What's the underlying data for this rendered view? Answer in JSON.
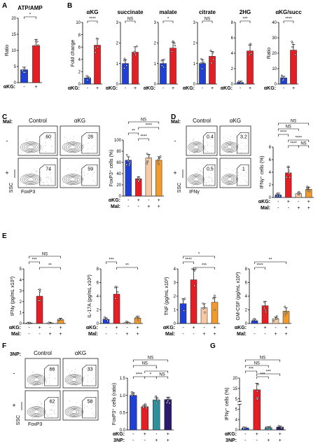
{
  "colors": {
    "blue": "#1f3fd6",
    "red": "#e31e24",
    "peach": "#f7c9a3",
    "orange": "#f39a2c",
    "teal": "#2f8f9a",
    "purple": "#2a1b6b",
    "dark": "#333333"
  },
  "panels": {
    "A": {
      "letter": "A",
      "title": "ATP/AMP",
      "ylabel": "Ratio",
      "ticks": [
        "0",
        "5",
        "10",
        "15",
        "20"
      ],
      "sig": "*",
      "akg_label": "αKG:",
      "signs": [
        "-",
        "+"
      ]
    },
    "B": {
      "letter": "B",
      "ylabel_left": "Fold change",
      "ylabel_right": "Ratio",
      "akg_label": "αKG:",
      "signs": [
        "-",
        "+"
      ],
      "subplots": [
        {
          "title": "αKG",
          "sig": "****",
          "ticks": [
            "0",
            "2",
            "4",
            "6",
            "8",
            "10"
          ]
        },
        {
          "title": "succinate",
          "sig": "NS",
          "ticks": [
            "0",
            "1",
            "2",
            "3"
          ]
        },
        {
          "title": "malate",
          "sig": "*",
          "ticks": [
            "0",
            "1",
            "2",
            "3"
          ]
        },
        {
          "title": "citrate",
          "sig": "NS",
          "ticks": [
            "0",
            "1",
            "2",
            "3"
          ]
        },
        {
          "title": "2HG",
          "sig": "***",
          "ticks": [
            "0",
            "2",
            "4",
            "6",
            "8"
          ]
        },
        {
          "title": "αKG/succ",
          "sig": "****",
          "ticks": [
            "0",
            "10",
            "20",
            "30",
            "40"
          ]
        }
      ]
    },
    "C": {
      "letter": "C",
      "mal_label": "Mal:",
      "col_labels": [
        "Control",
        "αKG"
      ],
      "row_labels": [
        "-",
        "+"
      ],
      "gate_values": [
        "60",
        "28",
        "74",
        "59"
      ],
      "ssc": "SSC",
      "marker": "FoxP3",
      "bar": {
        "ylabel": "FoxP3⁺ cells (%)",
        "ticks": [
          "0",
          "20",
          "40",
          "60",
          "80",
          "100"
        ],
        "sigs": [
          "NS",
          "****",
          "**",
          "****"
        ],
        "akg_label": "αKG:",
        "mal_label": "Mal:",
        "akg_signs": [
          "-",
          "+",
          "-",
          "+"
        ],
        "mal_signs": [
          "-",
          "-",
          "+",
          "+"
        ]
      }
    },
    "D": {
      "letter": "D",
      "mal_label": "Mal:",
      "col_labels": [
        "Control",
        "αKG"
      ],
      "row_labels": [
        "-",
        "+"
      ],
      "gate_values": [
        "0.4",
        "3.2",
        "0.5",
        "1"
      ],
      "ssc": "SSC",
      "marker": "IFNγ",
      "bar": {
        "ylabel": "IFNγ⁺ cells (%)",
        "ticks": [
          "0",
          "2",
          "4",
          "6",
          "8"
        ],
        "sigs": [
          "NS",
          "NS",
          "****",
          "****",
          "NS",
          "****"
        ],
        "akg_label": "αKG:",
        "mal_label": "Mal:",
        "akg_signs": [
          "-",
          "+",
          "-",
          "+"
        ],
        "mal_signs": [
          "-",
          "-",
          "+",
          "+"
        ]
      }
    },
    "E": {
      "letter": "E",
      "akg_label": "αKG:",
      "mal_label": "Mal:",
      "akg_signs": [
        "-",
        "+",
        "-",
        "+"
      ],
      "mal_signs": [
        "-",
        "-",
        "+",
        "+"
      ],
      "subplots": [
        {
          "ylabel": "IFNγ (pg/mL x10³)",
          "ticks": [
            "0",
            "1",
            "2",
            "3",
            "4",
            "5"
          ],
          "sigs": [
            "NS",
            "***",
            "**"
          ]
        },
        {
          "ylabel": "IL-17A (pg/mL x10³)",
          "ticks": [
            "0",
            "2",
            "4",
            "6",
            "8"
          ],
          "sigs": [
            "***",
            "**"
          ]
        },
        {
          "ylabel": "TNF (pg/mL x10³)",
          "ticks": [
            "0",
            "1",
            "2",
            "3",
            "4"
          ],
          "sigs": [
            "*",
            "****",
            "***"
          ]
        },
        {
          "ylabel": "GM-CSF (pg/mL x10³)",
          "ticks": [
            "0",
            "2",
            "4",
            "6",
            "8"
          ],
          "sigs": [
            "**",
            "****"
          ]
        }
      ]
    },
    "F": {
      "letter": "F",
      "np_label": "3NP:",
      "col_labels": [
        "Control",
        "αKG"
      ],
      "row_labels": [
        "-",
        "+"
      ],
      "gate_values": [
        "66",
        "33",
        "62",
        "58"
      ],
      "ssc": "SSC",
      "marker": "FoxP3",
      "bar": {
        "ylabel": "FoxP3⁺ cells (ratio)",
        "ticks": [
          "0.0",
          "0.5",
          "1.0",
          "1.5"
        ],
        "sigs": [
          "NS",
          "NS",
          "*",
          "****",
          "*",
          "NS"
        ],
        "akg_label": "αKG:",
        "np_label": "3NP:",
        "akg_signs": [
          "-",
          "+",
          "-",
          "+"
        ],
        "np_signs": [
          "-",
          "-",
          "+",
          "+"
        ]
      }
    },
    "G": {
      "letter": "G",
      "bar": {
        "ylabel": "IFNγ⁺ cells (%)",
        "ticks": [
          "0",
          "1",
          "2",
          "3",
          "4",
          "5",
          "15",
          "20"
        ],
        "sigs": [
          "NS",
          "NS",
          "***",
          "***",
          "***"
        ],
        "akg_label": "αKG:",
        "np_label": "3NP:",
        "akg_signs": [
          "-",
          "+",
          "-",
          "+"
        ],
        "np_signs": [
          "-",
          "-",
          "+",
          "+"
        ]
      }
    }
  },
  "chart_data": [
    {
      "type": "bar",
      "panel": "A",
      "title": "ATP/AMP",
      "ylabel": "Ratio",
      "ylim": [
        0,
        20
      ],
      "categories": [
        "-",
        "+"
      ],
      "values": [
        4,
        11.5
      ],
      "colors": [
        "#1f3fd6",
        "#e31e24"
      ]
    },
    {
      "type": "bar",
      "panel": "B",
      "title": "αKG",
      "ylabel": "Fold change",
      "ylim": [
        0,
        10
      ],
      "categories": [
        "-",
        "+"
      ],
      "values": [
        1,
        6.3
      ],
      "colors": [
        "#1f3fd6",
        "#e31e24"
      ]
    },
    {
      "type": "bar",
      "panel": "B",
      "title": "succinate",
      "ylim": [
        0,
        3
      ],
      "categories": [
        "-",
        "+"
      ],
      "values": [
        1,
        1.55
      ],
      "colors": [
        "#1f3fd6",
        "#e31e24"
      ]
    },
    {
      "type": "bar",
      "panel": "B",
      "title": "malate",
      "ylim": [
        0,
        3
      ],
      "categories": [
        "-",
        "+"
      ],
      "values": [
        1,
        1.75
      ],
      "colors": [
        "#1f3fd6",
        "#e31e24"
      ]
    },
    {
      "type": "bar",
      "panel": "B",
      "title": "citrate",
      "ylim": [
        0,
        3
      ],
      "categories": [
        "-",
        "+"
      ],
      "values": [
        1,
        1.35
      ],
      "colors": [
        "#1f3fd6",
        "#e31e24"
      ]
    },
    {
      "type": "bar",
      "panel": "B",
      "title": "2HG",
      "ylim": [
        0,
        8
      ],
      "categories": [
        "-",
        "+"
      ],
      "values": [
        0.2,
        4.3
      ],
      "colors": [
        "#1f3fd6",
        "#e31e24"
      ]
    },
    {
      "type": "bar",
      "panel": "B",
      "title": "αKG/succ",
      "ylabel": "Ratio",
      "ylim": [
        0,
        40
      ],
      "categories": [
        "-",
        "+"
      ],
      "values": [
        4,
        22
      ],
      "colors": [
        "#1f3fd6",
        "#e31e24"
      ]
    },
    {
      "type": "bar",
      "panel": "C",
      "ylabel": "FoxP3⁺ cells (%)",
      "ylim": [
        0,
        100
      ],
      "categories": [
        "αKG- Mal-",
        "αKG+ Mal-",
        "αKG- Mal+",
        "αKG+ Mal+"
      ],
      "values": [
        64,
        31,
        68,
        64
      ],
      "colors": [
        "#1f3fd6",
        "#e31e24",
        "#f7c9a3",
        "#f39a2c"
      ]
    },
    {
      "type": "bar",
      "panel": "D",
      "ylabel": "IFNγ⁺ cells (%)",
      "ylim": [
        0,
        8
      ],
      "categories": [
        "αKG- Mal-",
        "αKG+ Mal-",
        "αKG- Mal+",
        "αKG+ Mal+"
      ],
      "values": [
        0.4,
        3.9,
        0.6,
        1.3
      ],
      "colors": [
        "#1f3fd6",
        "#e31e24",
        "#f7c9a3",
        "#f39a2c"
      ]
    },
    {
      "type": "bar",
      "panel": "E",
      "ylabel": "IFNγ (pg/mL x10³)",
      "ylim": [
        0,
        5
      ],
      "categories": [
        "αKG- Mal-",
        "αKG+ Mal-",
        "αKG- Mal+",
        "αKG+ Mal+"
      ],
      "values": [
        0.05,
        2.5,
        0.05,
        0.35
      ],
      "colors": [
        "#1f3fd6",
        "#e31e24",
        "#f7c9a3",
        "#f39a2c"
      ]
    },
    {
      "type": "bar",
      "panel": "E",
      "ylabel": "IL-17A (pg/mL x10³)",
      "ylim": [
        0,
        8
      ],
      "categories": [
        "αKG- Mal-",
        "αKG+ Mal-",
        "αKG- Mal+",
        "αKG+ Mal+"
      ],
      "values": [
        0.6,
        4.3,
        0.15,
        0.8
      ],
      "colors": [
        "#1f3fd6",
        "#e31e24",
        "#f7c9a3",
        "#f39a2c"
      ]
    },
    {
      "type": "bar",
      "panel": "E",
      "ylabel": "TNF (pg/mL x10³)",
      "ylim": [
        0,
        4
      ],
      "categories": [
        "αKG- Mal-",
        "αKG+ Mal-",
        "αKG- Mal+",
        "αKG+ Mal+"
      ],
      "values": [
        1.45,
        3.2,
        1.15,
        1.55
      ],
      "colors": [
        "#1f3fd6",
        "#e31e24",
        "#f7c9a3",
        "#f39a2c"
      ]
    },
    {
      "type": "bar",
      "panel": "E",
      "ylabel": "GM-CSF (pg/mL x10³)",
      "ylim": [
        0,
        8
      ],
      "categories": [
        "αKG- Mal-",
        "αKG+ Mal-",
        "αKG- Mal+",
        "αKG+ Mal+"
      ],
      "values": [
        0.4,
        2.6,
        0.7,
        1.8
      ],
      "colors": [
        "#1f3fd6",
        "#e31e24",
        "#f7c9a3",
        "#f39a2c"
      ]
    },
    {
      "type": "bar",
      "panel": "F",
      "ylabel": "FoxP3⁺ cells (ratio)",
      "ylim": [
        0,
        1.5
      ],
      "categories": [
        "αKG- 3NP-",
        "αKG+ 3NP-",
        "αKG- 3NP+",
        "αKG+ 3NP+"
      ],
      "values": [
        1.0,
        0.67,
        0.87,
        0.88
      ],
      "colors": [
        "#1f3fd6",
        "#e31e24",
        "#2f8f9a",
        "#2a1b6b"
      ]
    },
    {
      "type": "bar",
      "panel": "G",
      "ylabel": "IFNγ⁺ cells (%)",
      "ylim": [
        0,
        20
      ],
      "categories": [
        "αKG- 3NP-",
        "αKG+ 3NP-",
        "αKG- 3NP+",
        "αKG+ 3NP+"
      ],
      "values": [
        0.75,
        15.5,
        0.85,
        1.1
      ],
      "colors": [
        "#1f3fd6",
        "#e31e24",
        "#2f8f9a",
        "#2a1b6b"
      ]
    }
  ]
}
